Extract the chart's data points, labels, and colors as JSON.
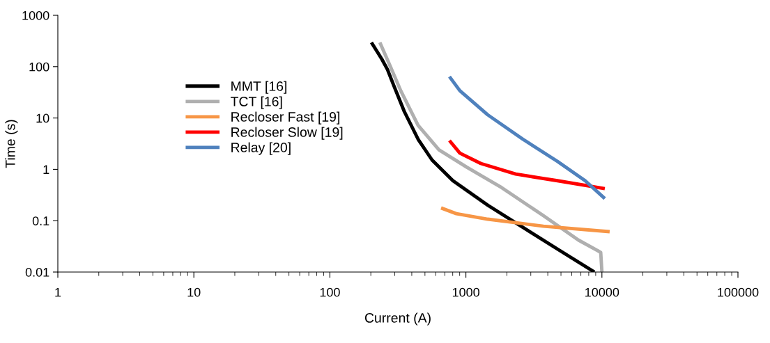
{
  "chart_data": {
    "type": "line",
    "xlabel": "Current (A)",
    "ylabel": "Time (s)",
    "log": "xy",
    "xlim": [
      1,
      100000
    ],
    "xticks": [
      1,
      10,
      100,
      1000,
      10000,
      100000
    ],
    "ylim": [
      0.01,
      1000
    ],
    "yticks": [
      0.01,
      0.1,
      1,
      10,
      100,
      1000
    ],
    "grid": false,
    "legend": "left",
    "marker": "none",
    "line_style": "solid",
    "series": [
      {
        "name": "MMT [16]",
        "color": "#000000",
        "x": [
          202,
          241,
          265,
          298,
          352,
          445,
          564,
          803,
          1449,
          4713,
          8810
        ],
        "values": [
          296,
          140,
          88,
          40,
          13.5,
          3.87,
          1.52,
          0.6,
          0.2,
          0.028,
          0.01
        ]
      },
      {
        "name": "TCT [16]",
        "color": "#afafaf",
        "x": [
          233,
          278,
          332,
          445,
          634,
          1016,
          1833,
          3716,
          6710,
          9330,
          9800,
          10000
        ],
        "values": [
          296,
          102,
          34,
          7.2,
          2.4,
          1.1,
          0.44,
          0.125,
          0.042,
          0.026,
          0.024,
          0.01
        ]
      },
      {
        "name": "Recloser Fast [19]",
        "color": "#f79646",
        "x": [
          657,
          851,
          1449,
          3716,
          11400
        ],
        "values": [
          0.177,
          0.137,
          0.107,
          0.078,
          0.061
        ]
      },
      {
        "name": "Recloser Slow [19]",
        "color": "#ff0000",
        "x": [
          757,
          903,
          1288,
          2321,
          4713,
          10500
        ],
        "values": [
          3.64,
          2.07,
          1.3,
          0.81,
          0.6,
          0.42
        ]
      },
      {
        "name": "Relay [20]",
        "color": "#4f81bd",
        "x": [
          757,
          903,
          1449,
          2619,
          4713,
          7530,
          10500
        ],
        "values": [
          64,
          34,
          11.5,
          3.87,
          1.43,
          0.6,
          0.27
        ]
      }
    ]
  }
}
